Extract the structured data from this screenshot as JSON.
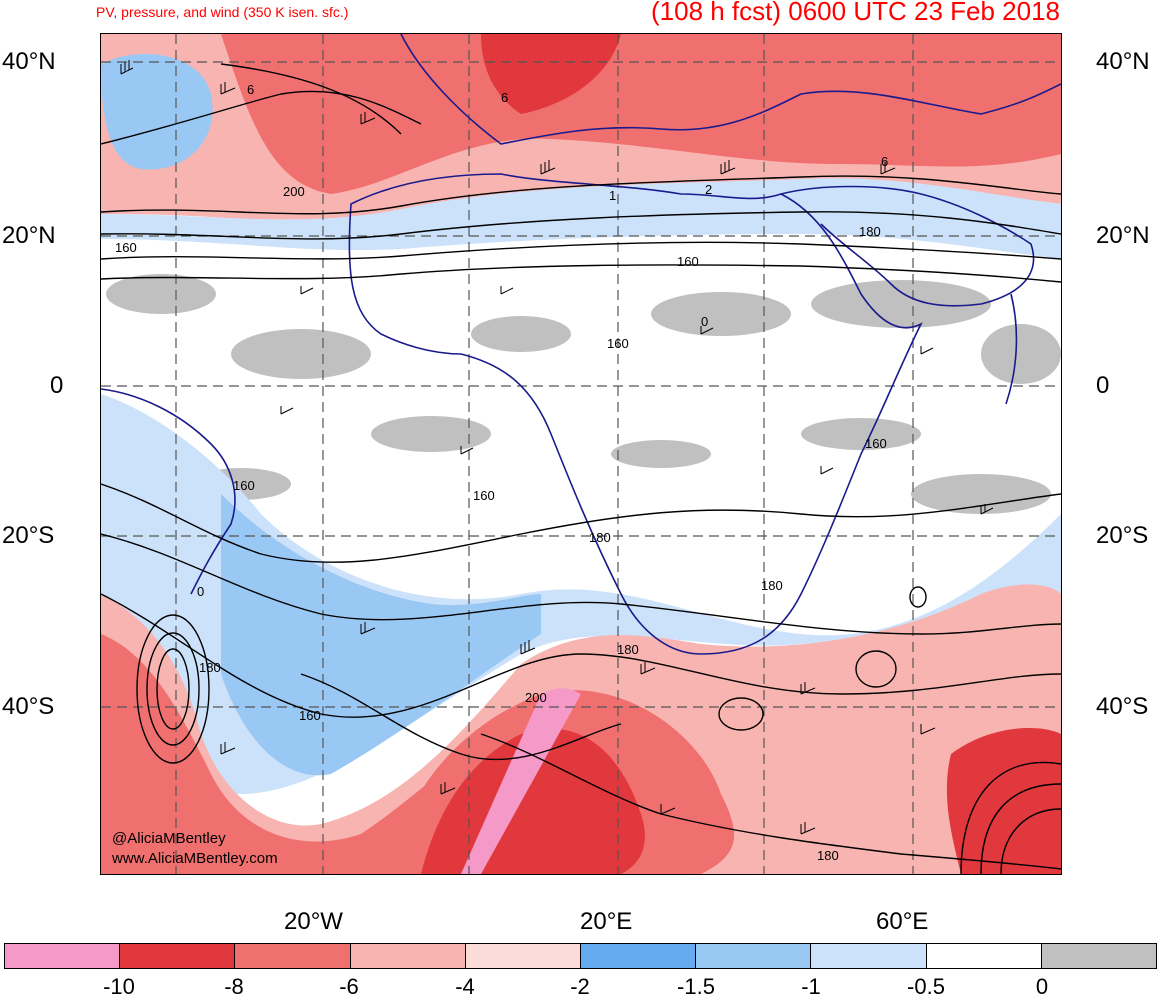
{
  "header": {
    "subtitle": "PV, pressure, and wind (350 K isen. sfc.)",
    "forecast_title": "(108 h fcst) 0600 UTC 23 Feb 2018"
  },
  "axes": {
    "lat_labels_left": [
      "40°N",
      "20°N",
      "0",
      "20°S",
      "40°S"
    ],
    "lat_labels_right": [
      "40°N",
      "20°N",
      "0",
      "20°S",
      "40°S"
    ],
    "lon_labels": [
      "20°W",
      "20°E",
      "60°E"
    ]
  },
  "contour_labels": [
    "6",
    "200",
    "160",
    "6",
    "1",
    "2",
    "180",
    "160",
    "0",
    "160",
    "160",
    "160",
    "0",
    "160",
    "180",
    "180",
    "180",
    "180",
    "200",
    "160",
    "180",
    "6"
  ],
  "credit": {
    "line1": "@AliciaMBentley",
    "line2": "www.AliciaMBentley.com"
  },
  "colorbar": {
    "colors": [
      "#f59ac8",
      "#e0383c",
      "#f07070",
      "#f8b4b0",
      "#fbdcd8",
      "#66aaf0",
      "#9ac8f5",
      "#cce2fa",
      "#ffffff",
      "#c0c0c0"
    ],
    "labels": [
      "-10",
      "-8",
      "-6",
      "-4",
      "-2",
      "-1.5",
      "-1",
      "-0.5",
      "0"
    ]
  },
  "map_colors": {
    "pink": "#f59ac8",
    "dark_red": "#e0383c",
    "red": "#f07070",
    "salmon": "#f8b4b0",
    "light_pink": "#fbdcd8",
    "blue": "#66aaf0",
    "light_blue": "#9ac8f5",
    "pale_blue": "#cce2fa",
    "gray": "#c0c0c0",
    "border_navy": "#1a1a8c"
  }
}
